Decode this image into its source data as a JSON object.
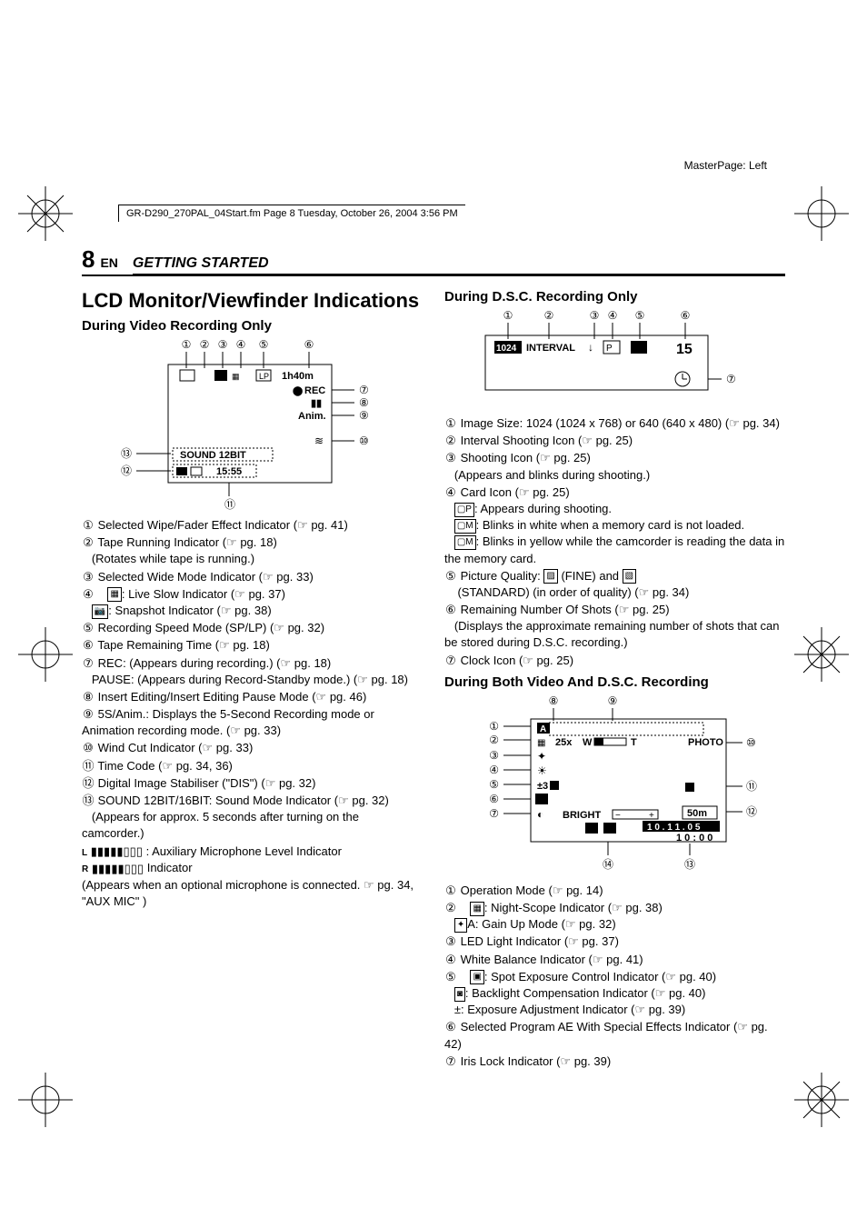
{
  "meta": {
    "masterpage": "MasterPage: Left",
    "doc_header": "GR-D290_270PAL_04Start.fm  Page 8  Tuesday, October 26, 2004  3:56 PM"
  },
  "header": {
    "page_number": "8",
    "lang": "EN",
    "section": "GETTING STARTED"
  },
  "main_title": "LCD Monitor/Viewfinder Indications",
  "video_recording": {
    "title": "During Video Recording Only",
    "diagram": {
      "labels_top": [
        "①",
        "②",
        "③",
        "④",
        "⑤",
        "⑥"
      ],
      "label_right": [
        "⑦",
        "⑧",
        "⑨",
        "⑩"
      ],
      "label_left": [
        "⑬",
        "⑫"
      ],
      "label_bottom": "⑪",
      "lcd": {
        "rec": "REC",
        "anim": "Anim.",
        "time": "1h40m",
        "lp": "LP",
        "sound": "SOUND 12BIT",
        "timecode_bar": "15:55",
        "colors": {
          "outline": "#000000",
          "text": "#000000"
        }
      }
    },
    "items": [
      {
        "n": "①",
        "text": "Selected Wipe/Fader Effect Indicator",
        "ref": "pg. 41"
      },
      {
        "n": "②",
        "text": "Tape Running Indicator",
        "ref": "pg. 18",
        "sub": "(Rotates while tape is running.)"
      },
      {
        "n": "③",
        "text": "Selected Wide Mode Indicator",
        "ref": "pg. 33"
      },
      {
        "n": "④",
        "text": "",
        "sub": "",
        "lines": [
          {
            "pre_icon": "live-slow-icon",
            "text": ": Live Slow Indicator",
            "ref": "pg. 37"
          },
          {
            "pre_icon": "snapshot-icon",
            "text": ": Snapshot Indicator",
            "ref": "pg. 38"
          }
        ]
      },
      {
        "n": "⑤",
        "text": "Recording Speed Mode (SP/LP)",
        "ref": "pg. 32"
      },
      {
        "n": "⑥",
        "text": "Tape Remaining Time",
        "ref": "pg. 18"
      },
      {
        "n": "⑦",
        "text": "REC: (Appears during recording.)",
        "ref": "pg. 18",
        "sub2": "PAUSE: (Appears during Record-Standby mode.)",
        "ref2": "pg. 18"
      },
      {
        "n": "⑧",
        "text": "Insert Editing/Insert Editing Pause Mode",
        "ref": "pg. 46"
      },
      {
        "n": "⑨",
        "text": "5S/Anim.: Displays the 5-Second Recording mode or Animation recording mode.",
        "ref": "pg. 33"
      },
      {
        "n": "⑩",
        "text": "Wind Cut Indicator",
        "ref": "pg. 33"
      },
      {
        "n": "⑪",
        "text": "Time Code",
        "ref": "pg. 34, 36"
      },
      {
        "n": "⑫",
        "text": "Digital Image Stabiliser (\"DIS\")",
        "ref": "pg. 32"
      },
      {
        "n": "⑬",
        "text": "SOUND 12BIT/16BIT: Sound Mode Indicator",
        "ref": "pg. 32",
        "sub": "(Appears for approx. 5 seconds after turning on the camcorder.)"
      },
      {
        "aux": true,
        "labelL": "L",
        "labelR": "R",
        "text": ": Auxiliary Microphone Level Indicator",
        "sub": "(Appears when an optional microphone is connected.",
        "ref": "pg. 34, \"AUX MIC\""
      }
    ]
  },
  "dsc_recording": {
    "title": "During D.S.C. Recording Only",
    "diagram": {
      "labels_top": [
        "①",
        "②",
        "③",
        "④",
        "⑤",
        "⑥"
      ],
      "label_right": "⑦",
      "lcd": {
        "size": "1024",
        "interval": "INTERVAL",
        "shots": "15",
        "colors": {
          "outline": "#000000"
        }
      }
    },
    "items": [
      {
        "n": "①",
        "text": "Image Size: 1024 (1024 x 768) or 640 (640 x 480)",
        "ref": "pg. 34"
      },
      {
        "n": "②",
        "text": "Interval Shooting Icon",
        "ref": "pg. 25"
      },
      {
        "n": "③",
        "text": "Shooting Icon",
        "ref": "pg. 25",
        "sub": "(Appears and blinks during shooting.)"
      },
      {
        "n": "④",
        "text": "Card Icon",
        "ref": "pg. 25",
        "lines": [
          {
            "pre_icon": "card-p-icon",
            "text": ": Appears during shooting."
          },
          {
            "pre_icon": "card-m-icon",
            "text": ": Blinks in white when a memory card is not loaded."
          },
          {
            "pre_icon": "card-m-icon",
            "text": ": Blinks in yellow while the camcorder is reading the data in the memory card."
          }
        ]
      },
      {
        "n": "⑤",
        "text": "Picture Quality: ",
        "icons_mid": [
          "fine-icon",
          "standard-icon"
        ],
        "text_mid": " (FINE) and ",
        "text_end": " (STANDARD) (in order of quality)",
        "ref": "pg. 34"
      },
      {
        "n": "⑥",
        "text": "Remaining Number Of Shots",
        "ref": "pg. 25",
        "sub": "(Displays the approximate remaining number of shots that can be stored during D.S.C. recording.)"
      },
      {
        "n": "⑦",
        "text": "Clock Icon",
        "ref": "pg. 25"
      }
    ]
  },
  "both_recording": {
    "title": "During Both Video And D.S.C. Recording",
    "diagram": {
      "labels_top": [
        "⑧",
        "⑨"
      ],
      "labels_left": [
        "①",
        "②",
        "③",
        "④",
        "⑤",
        "⑥",
        "⑦"
      ],
      "labels_right": [
        "⑩",
        "⑪",
        "⑫"
      ],
      "labels_bottom": [
        "⑭",
        "⑬"
      ],
      "lcd": {
        "opmode": "A",
        "zoom_text": "25x",
        "zoom_w": "W",
        "zoom_t": "T",
        "photo": "PHOTO",
        "pm3": "±3",
        "bright": "BRIGHT",
        "dist": "50m",
        "date": "1 0 . 1 1 . 0 5",
        "time": "1 0 : 0 0",
        "colors": {
          "outline": "#000000"
        }
      }
    },
    "items": [
      {
        "n": "①",
        "text": "Operation Mode",
        "ref": "pg. 14"
      },
      {
        "n": "②",
        "lines": [
          {
            "pre_icon": "night-scope-icon",
            "text": ": Night-Scope Indicator",
            "ref": "pg. 38"
          },
          {
            "pre_icon": "gain-up-icon",
            "pre_text": "A",
            "text": ": Gain Up Mode",
            "ref": "pg. 32"
          }
        ]
      },
      {
        "n": "③",
        "text": "LED Light Indicator",
        "ref": "pg. 37"
      },
      {
        "n": "④",
        "text": "White Balance Indicator",
        "ref": "pg. 41"
      },
      {
        "n": "⑤",
        "lines": [
          {
            "pre_icon": "spot-exp-icon",
            "text": ": Spot Exposure Control Indicator",
            "ref": "pg. 40"
          },
          {
            "pre_icon": "backlight-icon",
            "text": ": Backlight Compensation Indicator",
            "ref": "pg. 40"
          },
          {
            "pre_text": "±",
            "text": ": Exposure Adjustment Indicator",
            "ref": "pg. 39"
          }
        ]
      },
      {
        "n": "⑥",
        "text": "Selected Program AE With Special Effects Indicator",
        "ref": "pg. 42"
      },
      {
        "n": "⑦",
        "text": "Iris Lock Indicator",
        "ref": "pg. 39"
      }
    ]
  },
  "ref_glyph": "☞"
}
